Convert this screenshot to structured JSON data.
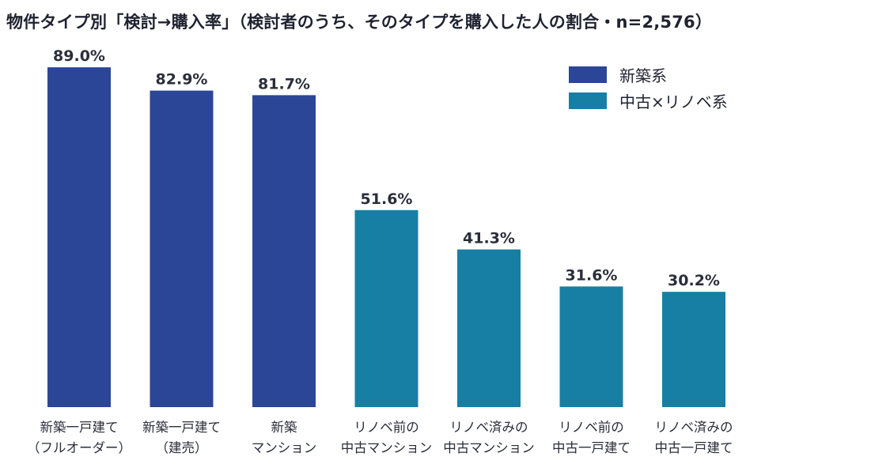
{
  "chart_data": {
    "type": "bar",
    "title": "物件タイプ別「検討→購入率」（検討者のうち、そのタイプを購入した人の割合・n=2,576）",
    "categories": [
      "新築一戸建て（フルオーダー）",
      "新築一戸建て（建売）",
      "新築マンション",
      "リノベ前の中古マンション",
      "リノベ済みの中古マンション",
      "リノベ前の中古一戸建て",
      "リノベ済みの中古一戸建て"
    ],
    "category_lines": [
      [
        "新築一戸建て",
        "（フルオーダー）"
      ],
      [
        "新築一戸建て",
        "（建売）"
      ],
      [
        "新築",
        "マンション"
      ],
      [
        "リノベ前の",
        "中古マンション"
      ],
      [
        "リノベ済みの",
        "中古マンション"
      ],
      [
        "リノベ前の",
        "中古一戸建て"
      ],
      [
        "リノベ済みの",
        "中古一戸建て"
      ]
    ],
    "values": [
      89.0,
      82.9,
      81.7,
      51.6,
      41.3,
      31.6,
      30.2
    ],
    "value_labels": [
      "89.0%",
      "82.9%",
      "81.7%",
      "51.6%",
      "41.3%",
      "31.6%",
      "30.2%"
    ],
    "group": [
      0,
      0,
      0,
      1,
      1,
      1,
      1
    ],
    "legend": [
      "新築系",
      "中古×リノベ系"
    ],
    "legend_placement": "top-right",
    "colors": [
      "#2b4697",
      "#177fa3"
    ],
    "ylim": [
      0,
      100
    ],
    "grid": false,
    "xlabel": "",
    "ylabel": ""
  }
}
